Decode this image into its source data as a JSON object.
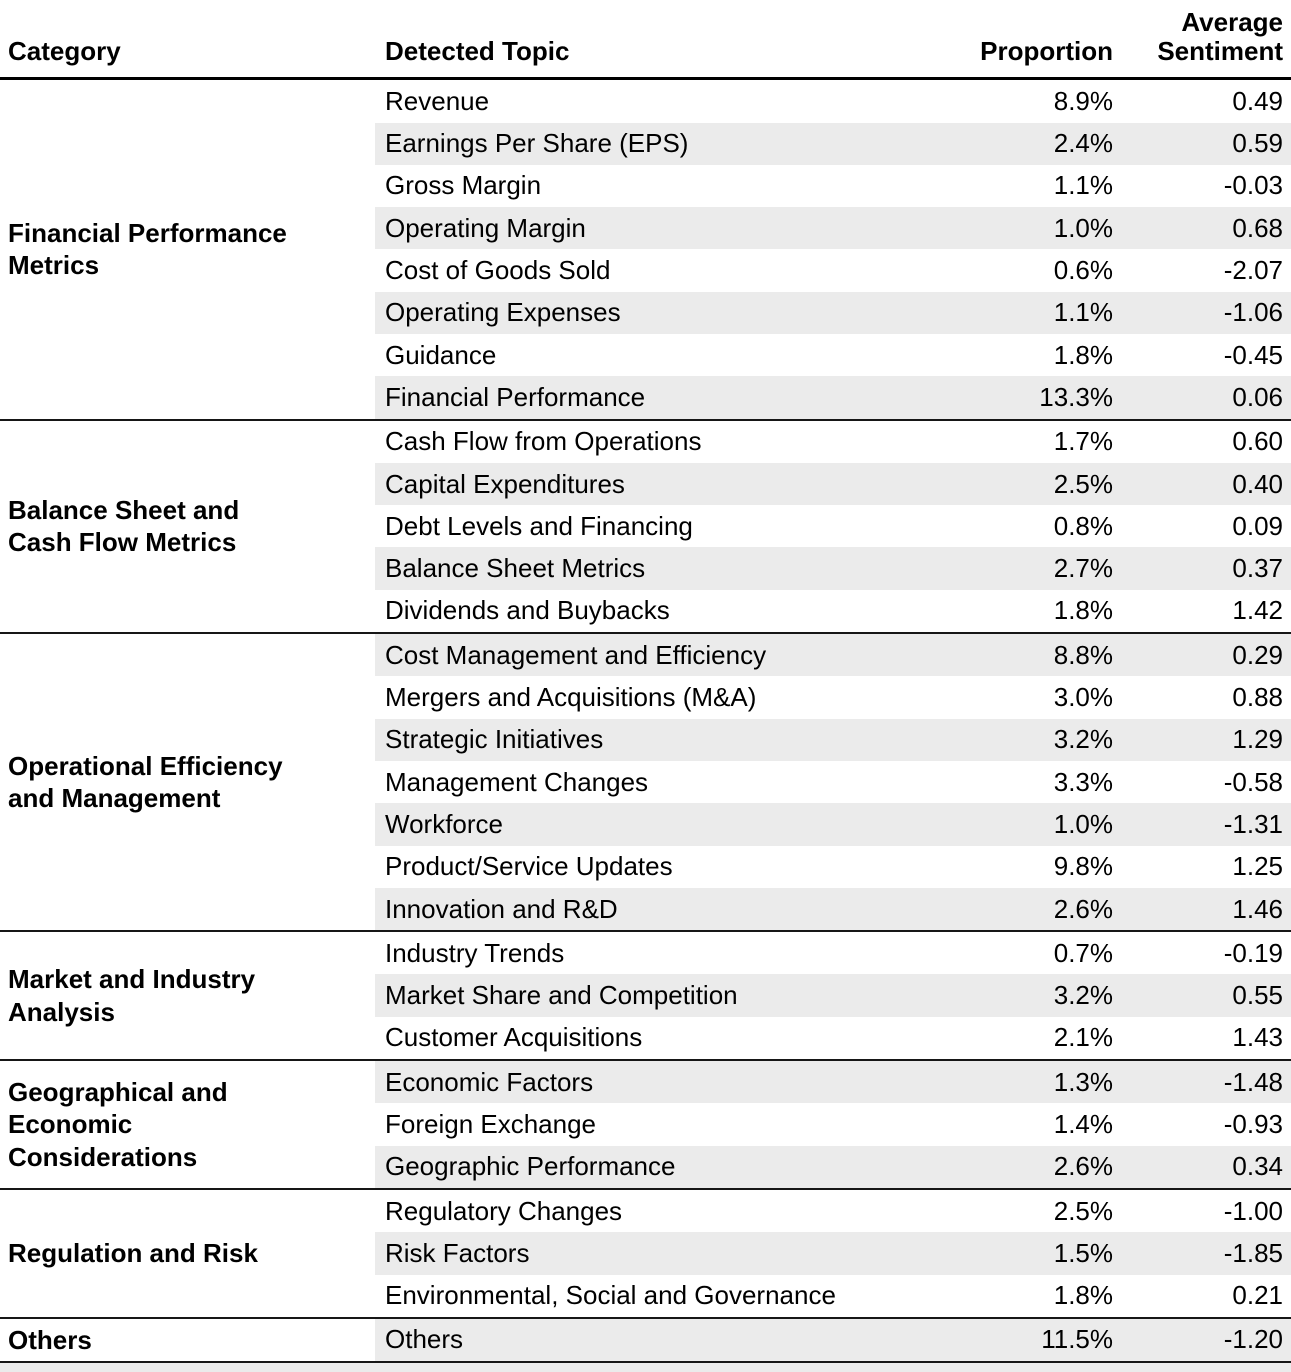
{
  "chart_data": {
    "type": "table",
    "columns": {
      "category": "Category",
      "topic": "Detected Topic",
      "proportion": "Proportion",
      "sentiment": "Average\nSentiment"
    },
    "sections": [
      {
        "category": "Financial Performance\nMetrics",
        "rows": [
          {
            "topic": "Revenue",
            "proportion": "8.9%",
            "sentiment": "0.49"
          },
          {
            "topic": "Earnings Per Share (EPS)",
            "proportion": "2.4%",
            "sentiment": "0.59"
          },
          {
            "topic": "Gross Margin",
            "proportion": "1.1%",
            "sentiment": "-0.03"
          },
          {
            "topic": "Operating Margin",
            "proportion": "1.0%",
            "sentiment": "0.68"
          },
          {
            "topic": "Cost of Goods Sold",
            "proportion": "0.6%",
            "sentiment": "-2.07"
          },
          {
            "topic": "Operating Expenses",
            "proportion": "1.1%",
            "sentiment": "-1.06"
          },
          {
            "topic": "Guidance",
            "proportion": "1.8%",
            "sentiment": "-0.45"
          },
          {
            "topic": "Financial Performance",
            "proportion": "13.3%",
            "sentiment": "0.06"
          }
        ]
      },
      {
        "category": "Balance Sheet and\nCash Flow Metrics",
        "rows": [
          {
            "topic": "Cash Flow from Operations",
            "proportion": "1.7%",
            "sentiment": "0.60"
          },
          {
            "topic": "Capital Expenditures",
            "proportion": "2.5%",
            "sentiment": "0.40"
          },
          {
            "topic": "Debt Levels and Financing",
            "proportion": "0.8%",
            "sentiment": "0.09"
          },
          {
            "topic": "Balance Sheet Metrics",
            "proportion": "2.7%",
            "sentiment": "0.37"
          },
          {
            "topic": "Dividends and Buybacks",
            "proportion": "1.8%",
            "sentiment": "1.42"
          }
        ]
      },
      {
        "category": "Operational Efficiency\nand Management",
        "rows": [
          {
            "topic": "Cost Management and Efficiency",
            "proportion": "8.8%",
            "sentiment": "0.29"
          },
          {
            "topic": "Mergers and Acquisitions (M&A)",
            "proportion": "3.0%",
            "sentiment": "0.88"
          },
          {
            "topic": "Strategic Initiatives",
            "proportion": "3.2%",
            "sentiment": "1.29"
          },
          {
            "topic": "Management Changes",
            "proportion": "3.3%",
            "sentiment": "-0.58"
          },
          {
            "topic": "Workforce",
            "proportion": "1.0%",
            "sentiment": "-1.31"
          },
          {
            "topic": "Product/Service Updates",
            "proportion": "9.8%",
            "sentiment": "1.25"
          },
          {
            "topic": "Innovation and R&D",
            "proportion": "2.6%",
            "sentiment": "1.46"
          }
        ]
      },
      {
        "category": "Market and Industry\nAnalysis",
        "rows": [
          {
            "topic": "Industry Trends",
            "proportion": "0.7%",
            "sentiment": "-0.19"
          },
          {
            "topic": "Market Share and Competition",
            "proportion": "3.2%",
            "sentiment": "0.55"
          },
          {
            "topic": "Customer Acquisitions",
            "proportion": "2.1%",
            "sentiment": "1.43"
          }
        ]
      },
      {
        "category": "Geographical and\nEconomic\nConsiderations",
        "rows": [
          {
            "topic": "Economic Factors",
            "proportion": "1.3%",
            "sentiment": "-1.48"
          },
          {
            "topic": "Foreign Exchange",
            "proportion": "1.4%",
            "sentiment": "-0.93"
          },
          {
            "topic": "Geographic Performance",
            "proportion": "2.6%",
            "sentiment": "0.34"
          }
        ]
      },
      {
        "category": "Regulation and Risk",
        "rows": [
          {
            "topic": "Regulatory Changes",
            "proportion": "2.5%",
            "sentiment": "-1.00"
          },
          {
            "topic": "Risk Factors",
            "proportion": "1.5%",
            "sentiment": "-1.85"
          },
          {
            "topic": "Environmental, Social and Governance",
            "proportion": "1.8%",
            "sentiment": "0.21"
          }
        ]
      },
      {
        "category": "Others",
        "rows": [
          {
            "topic": "Others",
            "proportion": "11.5%",
            "sentiment": "-1.20"
          }
        ]
      }
    ],
    "colors": {
      "stripe": "#ebebeb",
      "header_rule": "#000000",
      "section_rule": "#161616",
      "text": "#000000"
    },
    "layout": {
      "stripe_pattern": "alternating rows, continuous across sections, stripes only on topic/proportion/sentiment columns"
    }
  }
}
